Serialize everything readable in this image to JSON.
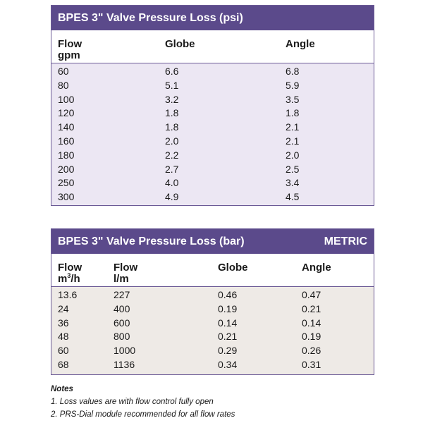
{
  "psi_table": {
    "title": "BPES 3\"  Valve Pressure Loss (psi)",
    "headers": {
      "flow": "Flow",
      "flow_unit": "gpm",
      "globe": "Globe",
      "angle": "Angle"
    },
    "rows": [
      {
        "flow": "60",
        "globe": "6.6",
        "angle": "6.8"
      },
      {
        "flow": "80",
        "globe": "5.1",
        "angle": "5.9"
      },
      {
        "flow": "100",
        "globe": "3.2",
        "angle": "3.5"
      },
      {
        "flow": "120",
        "globe": "1.8",
        "angle": "1.8"
      },
      {
        "flow": "140",
        "globe": "1.8",
        "angle": "2.1"
      },
      {
        "flow": "160",
        "globe": "2.0",
        "angle": "2.1"
      },
      {
        "flow": "180",
        "globe": "2.2",
        "angle": "2.0"
      },
      {
        "flow": "200",
        "globe": "2.7",
        "angle": "2.5"
      },
      {
        "flow": "250",
        "globe": "4.0",
        "angle": "3.4"
      },
      {
        "flow": "300",
        "globe": "4.9",
        "angle": "4.5"
      }
    ]
  },
  "bar_table": {
    "title": "BPES 3\"  Valve Pressure Loss (bar)",
    "badge": "METRIC",
    "headers": {
      "flow_m3": "Flow",
      "flow_m3_unit_base": "m",
      "flow_m3_unit_sup": "3",
      "flow_m3_unit_tail": "/h",
      "flow_lm": "Flow",
      "flow_lm_unit": "l/m",
      "globe": "Globe",
      "angle": "Angle"
    },
    "rows": [
      {
        "flow_m3": "13.6",
        "flow_lm": "227",
        "globe": "0.46",
        "angle": "0.47"
      },
      {
        "flow_m3": "24",
        "flow_lm": "400",
        "globe": "0.19",
        "angle": "0.21"
      },
      {
        "flow_m3": "36",
        "flow_lm": "600",
        "globe": "0.14",
        "angle": "0.14"
      },
      {
        "flow_m3": "48",
        "flow_lm": "800",
        "globe": "0.21",
        "angle": "0.19"
      },
      {
        "flow_m3": "60",
        "flow_lm": "1000",
        "globe": "0.29",
        "angle": "0.26"
      },
      {
        "flow_m3": "68",
        "flow_lm": "1136",
        "globe": "0.34",
        "angle": "0.31"
      }
    ]
  },
  "notes": {
    "title": "Notes",
    "items": [
      "1. Loss values are with flow control fully open",
      "2. PRS-Dial module recommended for all flow rates"
    ]
  }
}
